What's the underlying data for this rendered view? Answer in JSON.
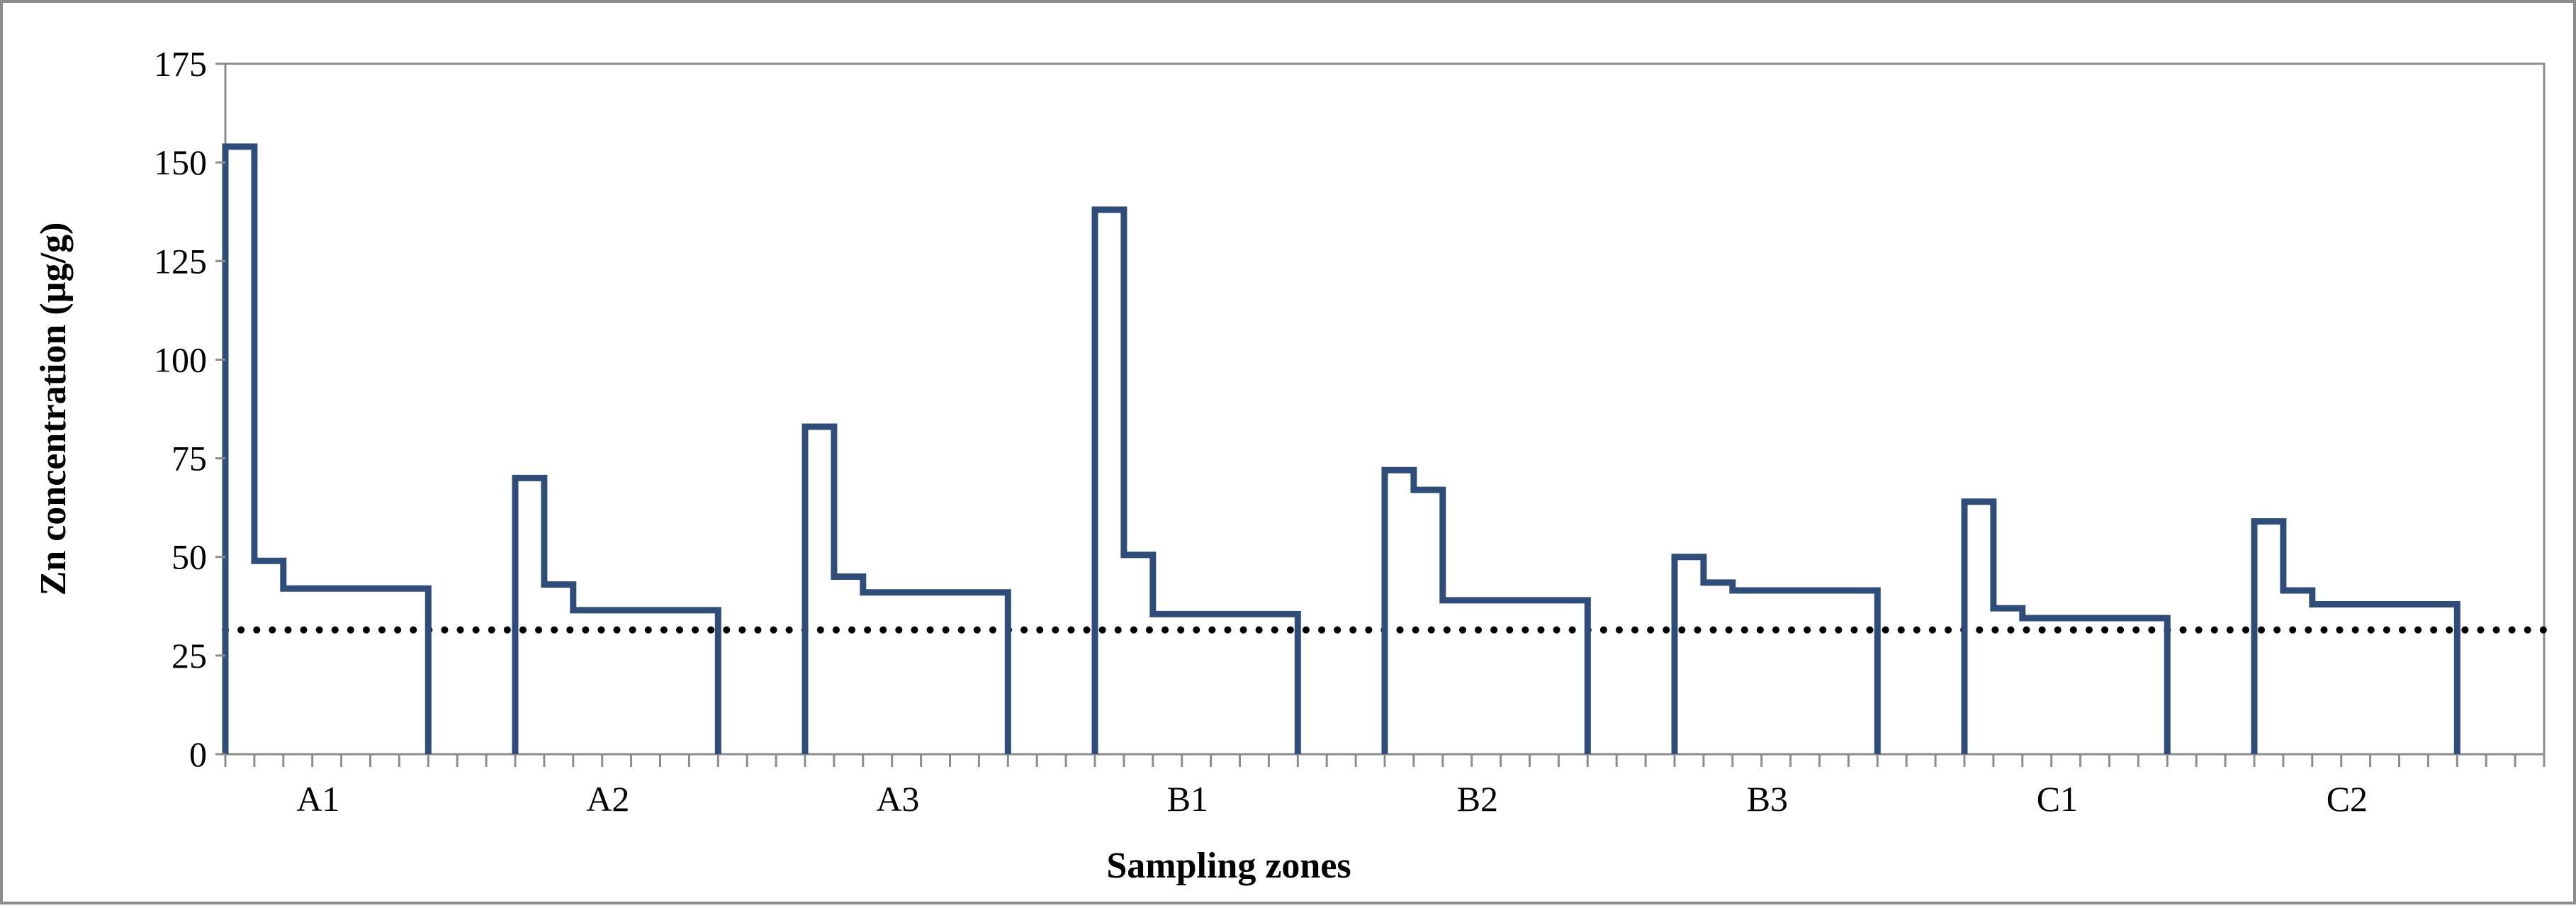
{
  "chart_data": {
    "type": "line",
    "step": true,
    "xlabel": "Sampling zones",
    "ylabel": "Zn concentration (µg/g)",
    "ylim": [
      0,
      175
    ],
    "yticks": [
      "0",
      "25",
      "50",
      "75",
      "100",
      "125",
      "150",
      "175"
    ],
    "grid": false,
    "legend": "none",
    "reference_line": {
      "value": 31.5,
      "style": "dotted",
      "color": "#000000"
    },
    "series_color": "#2e4d7b",
    "categories": [
      "A1",
      "A2",
      "A3",
      "B1",
      "B2",
      "B3",
      "C1",
      "C2"
    ],
    "profiles": [
      {
        "zone": "A1",
        "values": [
          154,
          49,
          42,
          42,
          42,
          42,
          42
        ]
      },
      {
        "zone": "A2",
        "values": [
          70,
          43,
          36.5,
          36.5,
          36.5,
          36.5,
          36.5
        ]
      },
      {
        "zone": "A3",
        "values": [
          83,
          45,
          41,
          41,
          41,
          41,
          41
        ]
      },
      {
        "zone": "B1",
        "values": [
          138,
          50.5,
          35.5,
          35.5,
          35.5,
          35.5,
          35.5
        ]
      },
      {
        "zone": "B2",
        "values": [
          72,
          67,
          39,
          39,
          39,
          39,
          39
        ]
      },
      {
        "zone": "B3",
        "values": [
          50,
          43.5,
          41.5,
          41.5,
          41.5,
          41.5,
          41.5
        ]
      },
      {
        "zone": "C1",
        "values": [
          64,
          37,
          34.5,
          34.5,
          34.5,
          34.5,
          34.5
        ]
      },
      {
        "zone": "C2",
        "values": [
          59,
          41.5,
          38,
          38,
          38,
          38,
          38
        ]
      }
    ]
  }
}
